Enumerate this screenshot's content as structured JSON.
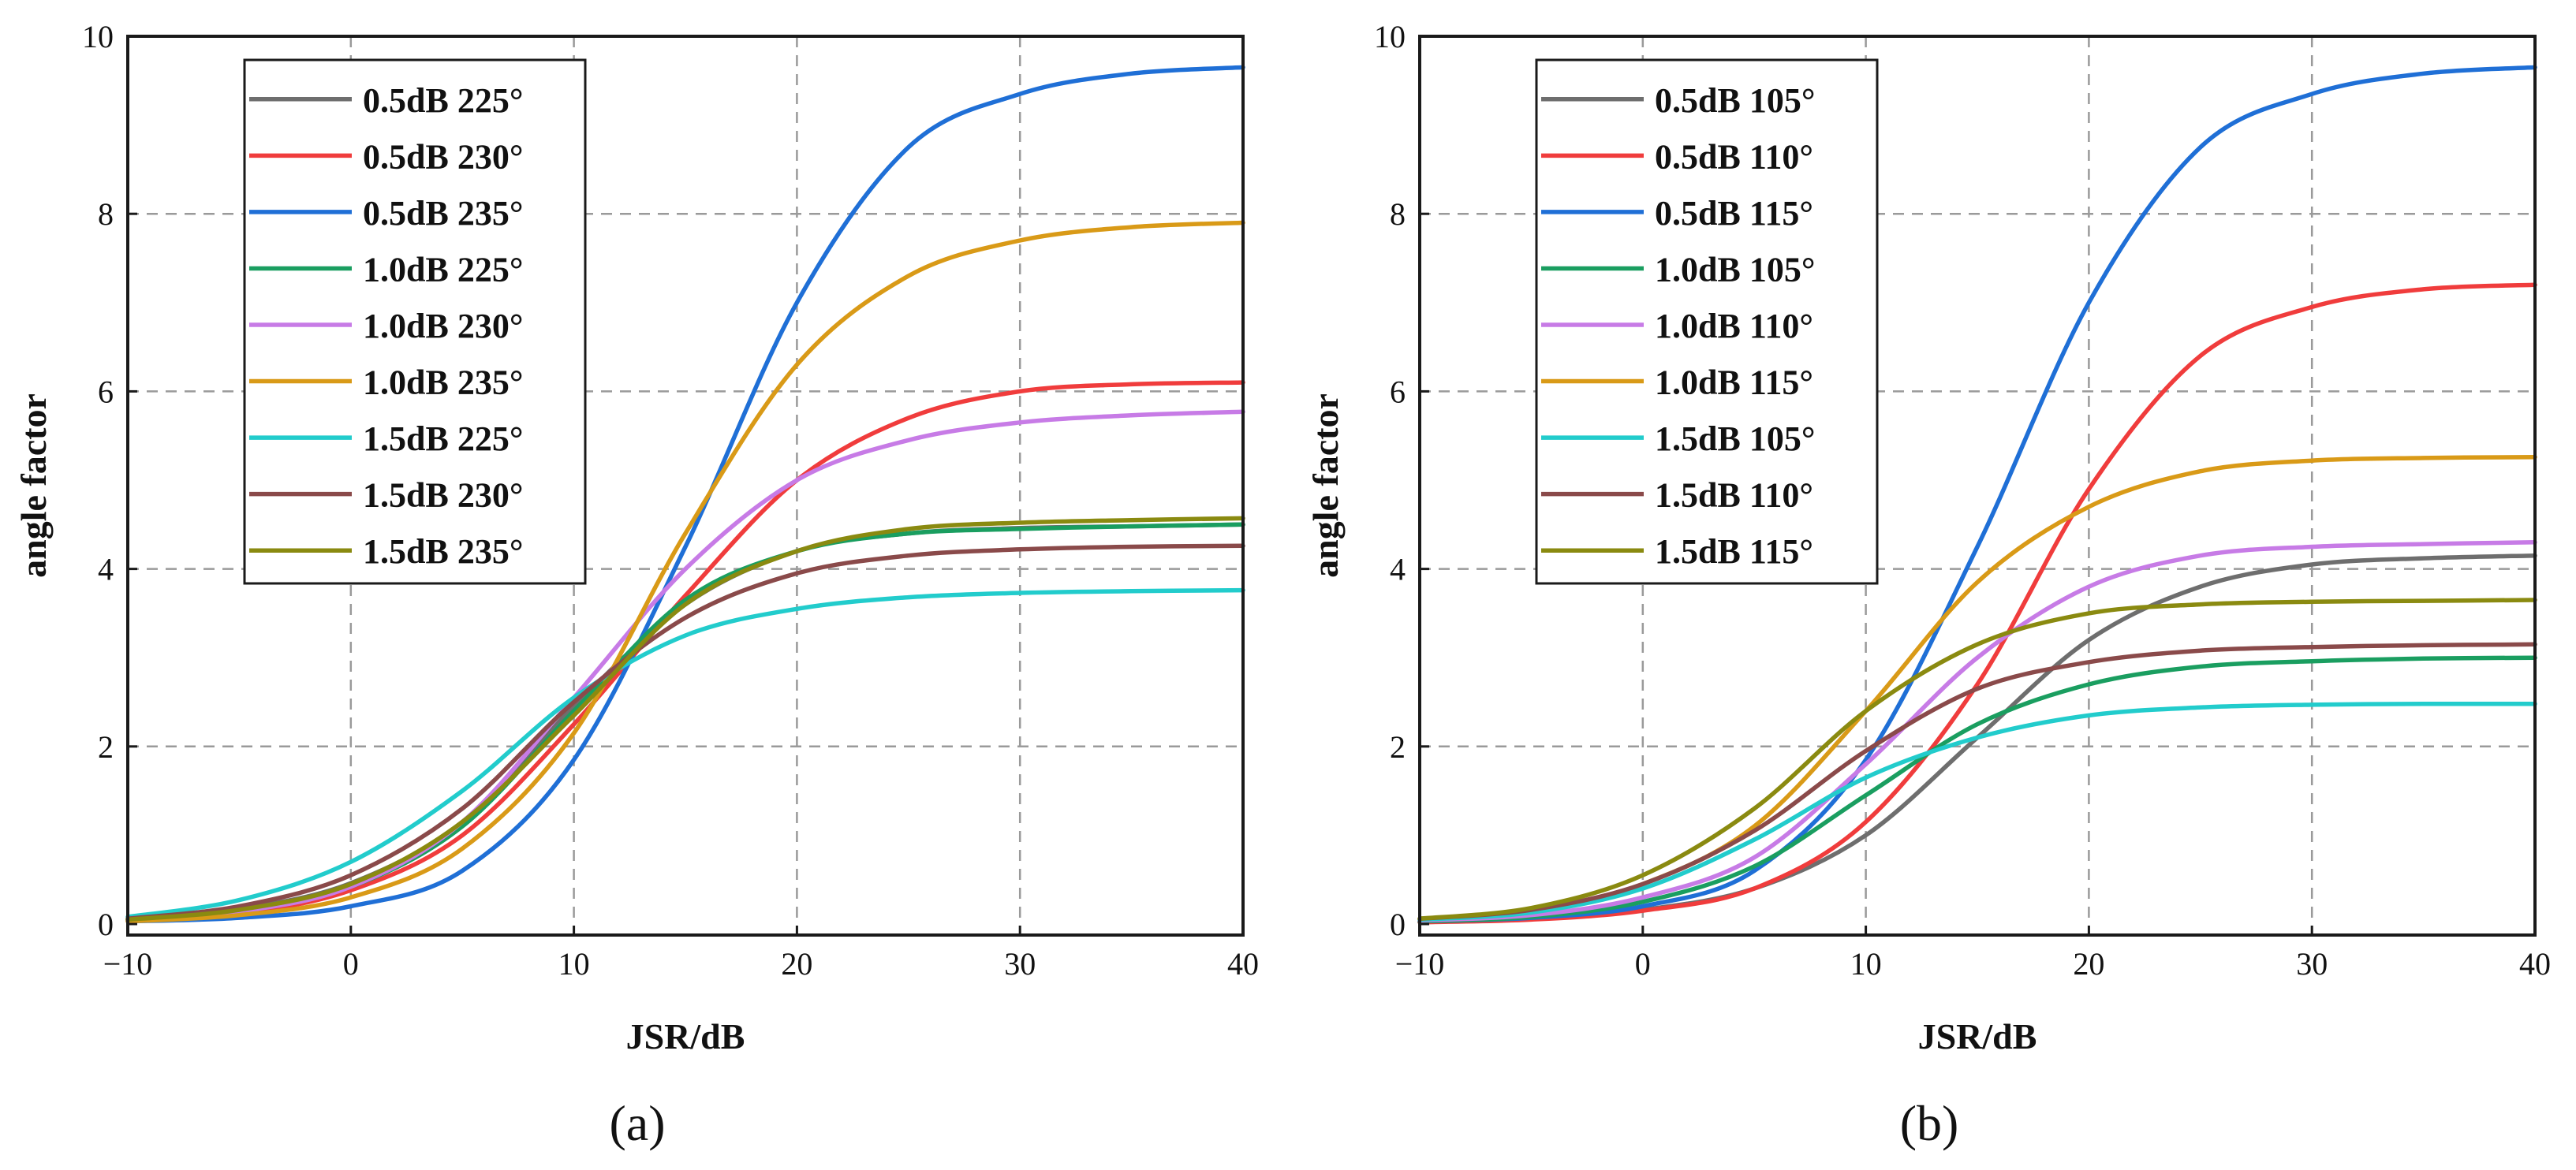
{
  "chart_data": [
    {
      "type": "line",
      "panel_label": "(a)",
      "xlabel": "JSR/dB",
      "ylabel": "angle factor",
      "xlim": [
        -10,
        40
      ],
      "ylim": [
        0,
        10
      ],
      "xticks": [
        -10,
        0,
        10,
        20,
        30,
        40
      ],
      "xtick_labels": [
        "−10",
        "0",
        "10",
        "20",
        "30",
        "40"
      ],
      "yticks": [
        0,
        2,
        4,
        6,
        8,
        10
      ],
      "ytick_labels": [
        "0",
        "2",
        "4",
        "6",
        "8",
        "10"
      ],
      "grid": true,
      "legend_position": "top-left",
      "x": [
        -10,
        -5,
        0,
        5,
        10,
        15,
        20,
        25,
        30,
        35,
        40
      ],
      "series": [
        {
          "name": "0.5dB 225°",
          "color": "#6e6e6e",
          "values": [
            0.05,
            0.17,
            0.46,
            1.15,
            2.45,
            3.6,
            4.2,
            4.4,
            4.46,
            4.48,
            4.5
          ]
        },
        {
          "name": "0.5dB 230°",
          "color": "#f03c3c",
          "values": [
            0.04,
            0.12,
            0.38,
            1.0,
            2.25,
            3.7,
            5.0,
            5.7,
            6.0,
            6.08,
            6.1
          ]
        },
        {
          "name": "0.5dB 235°",
          "color": "#1f6fd6",
          "values": [
            0.03,
            0.07,
            0.2,
            0.6,
            1.85,
            4.25,
            7.0,
            8.75,
            9.35,
            9.58,
            9.65
          ]
        },
        {
          "name": "1.0dB 225°",
          "color": "#1a9e60",
          "values": [
            0.05,
            0.15,
            0.42,
            1.1,
            2.4,
            3.65,
            4.2,
            4.4,
            4.45,
            4.48,
            4.5
          ]
        },
        {
          "name": "1.0dB 230°",
          "color": "#c77be6",
          "values": [
            0.04,
            0.14,
            0.42,
            1.15,
            2.55,
            4.0,
            5.0,
            5.45,
            5.65,
            5.73,
            5.77
          ]
        },
        {
          "name": "1.0dB 235°",
          "color": "#d99a17",
          "values": [
            0.03,
            0.1,
            0.3,
            0.85,
            2.15,
            4.4,
            6.3,
            7.3,
            7.7,
            7.85,
            7.9
          ]
        },
        {
          "name": "1.5dB 225°",
          "color": "#22cccc",
          "values": [
            0.08,
            0.27,
            0.7,
            1.5,
            2.55,
            3.25,
            3.55,
            3.68,
            3.73,
            3.75,
            3.76
          ]
        },
        {
          "name": "1.5dB 230°",
          "color": "#8a4a4a",
          "values": [
            0.06,
            0.2,
            0.55,
            1.3,
            2.5,
            3.45,
            3.95,
            4.15,
            4.22,
            4.25,
            4.26
          ]
        },
        {
          "name": "1.5dB 235°",
          "color": "#8a8a10",
          "values": [
            0.05,
            0.16,
            0.45,
            1.15,
            2.35,
            3.6,
            4.2,
            4.45,
            4.52,
            4.55,
            4.57
          ]
        }
      ]
    },
    {
      "type": "line",
      "panel_label": "(b)",
      "xlabel": "JSR/dB",
      "ylabel": "angle factor",
      "xlim": [
        -10,
        40
      ],
      "ylim": [
        0,
        10
      ],
      "xticks": [
        -10,
        0,
        10,
        20,
        30,
        40
      ],
      "xtick_labels": [
        "−10",
        "0",
        "10",
        "20",
        "30",
        "40"
      ],
      "yticks": [
        0,
        2,
        4,
        6,
        8,
        10
      ],
      "ytick_labels": [
        "0",
        "2",
        "4",
        "6",
        "8",
        "10"
      ],
      "grid": true,
      "legend_position": "top-left",
      "x": [
        -10,
        -5,
        0,
        5,
        10,
        15,
        20,
        25,
        30,
        35,
        40
      ],
      "series": [
        {
          "name": "0.5dB 105°",
          "color": "#6e6e6e",
          "values": [
            0.02,
            0.06,
            0.16,
            0.4,
            1.0,
            2.1,
            3.2,
            3.8,
            4.05,
            4.12,
            4.15
          ]
        },
        {
          "name": "0.5dB 110°",
          "color": "#f03c3c",
          "values": [
            0.02,
            0.05,
            0.15,
            0.4,
            1.15,
            2.7,
            4.9,
            6.4,
            6.95,
            7.15,
            7.2
          ]
        },
        {
          "name": "0.5dB 115°",
          "color": "#1f6fd6",
          "values": [
            0.03,
            0.07,
            0.2,
            0.6,
            1.85,
            4.25,
            7.0,
            8.75,
            9.35,
            9.58,
            9.65
          ]
        },
        {
          "name": "1.0dB 105°",
          "color": "#1a9e60",
          "values": [
            0.03,
            0.08,
            0.25,
            0.65,
            1.45,
            2.25,
            2.7,
            2.9,
            2.96,
            2.99,
            3.0
          ]
        },
        {
          "name": "1.0dB 110°",
          "color": "#c77be6",
          "values": [
            0.04,
            0.1,
            0.3,
            0.75,
            1.8,
            3.0,
            3.8,
            4.15,
            4.25,
            4.28,
            4.3
          ]
        },
        {
          "name": "1.0dB 115°",
          "color": "#d99a17",
          "values": [
            0.05,
            0.15,
            0.45,
            1.1,
            2.4,
            3.85,
            4.7,
            5.1,
            5.22,
            5.25,
            5.26
          ]
        },
        {
          "name": "1.5dB 105°",
          "color": "#22cccc",
          "values": [
            0.05,
            0.13,
            0.4,
            0.95,
            1.65,
            2.1,
            2.35,
            2.44,
            2.47,
            2.48,
            2.48
          ]
        },
        {
          "name": "1.5dB 110°",
          "color": "#8a4a4a",
          "values": [
            0.06,
            0.16,
            0.45,
            1.05,
            1.95,
            2.65,
            2.95,
            3.08,
            3.12,
            3.14,
            3.15
          ]
        },
        {
          "name": "1.5dB 115°",
          "color": "#8a8a10",
          "values": [
            0.06,
            0.18,
            0.55,
            1.3,
            2.4,
            3.15,
            3.5,
            3.6,
            3.63,
            3.64,
            3.65
          ]
        }
      ]
    }
  ]
}
